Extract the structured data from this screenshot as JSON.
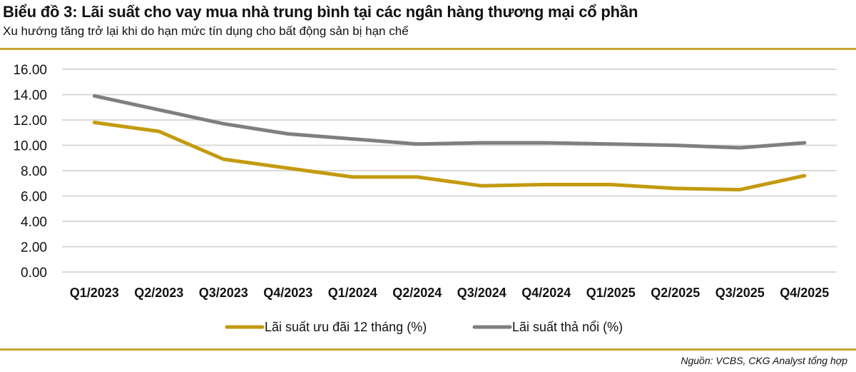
{
  "header": {
    "title": "Biểu đồ 3: Lãi suất cho vay mua nhà trung bình tại các ngân hàng thương mại cổ phần",
    "subtitle": "Xu hướng tăng trở lại khi do hạn mức tín dụng cho bất động sản bị hạn chế"
  },
  "footer": {
    "source": "Nguồn: VCBS, CKG Analyst tổng hợp"
  },
  "colors": {
    "rule": "#c8a531",
    "series_gold": "#c49a0f",
    "series_gray": "#7f7f7f",
    "grid": "#d9d9d9"
  },
  "chart_data": {
    "type": "line",
    "title": "Biểu đồ 3: Lãi suất cho vay mua nhà trung bình tại các ngân hàng thương mại cổ phần",
    "subtitle": "Xu hướng tăng trở lại khi do hạn mức tín dụng cho bất động sản bị hạn chế",
    "xlabel": "",
    "ylabel": "",
    "ylim": [
      0,
      16
    ],
    "yticks": [
      "0.00",
      "2.00",
      "4.00",
      "6.00",
      "8.00",
      "10.00",
      "12.00",
      "14.00",
      "16.00"
    ],
    "grid": true,
    "legend_position": "bottom",
    "categories": [
      "Q1/2023",
      "Q2/2023",
      "Q3/2023",
      "Q4/2023",
      "Q1/2024",
      "Q2/2024",
      "Q3/2024",
      "Q4/2024",
      "Q1/2025",
      "Q2/2025",
      "Q3/2025",
      "Q4/2025"
    ],
    "series": [
      {
        "name": "Lãi suất ưu đãi 12 tháng (%)",
        "color": "#c49a0f",
        "values": [
          11.8,
          11.1,
          8.9,
          8.2,
          7.5,
          7.5,
          6.8,
          6.9,
          6.9,
          6.6,
          6.5,
          7.6
        ]
      },
      {
        "name": "Lãi suất thả nổi (%)",
        "color": "#7f7f7f",
        "values": [
          13.9,
          12.8,
          11.7,
          10.9,
          10.5,
          10.1,
          10.2,
          10.2,
          10.1,
          10.0,
          9.8,
          10.2
        ]
      }
    ],
    "source": "Nguồn: VCBS, CKG Analyst tổng hợp"
  }
}
